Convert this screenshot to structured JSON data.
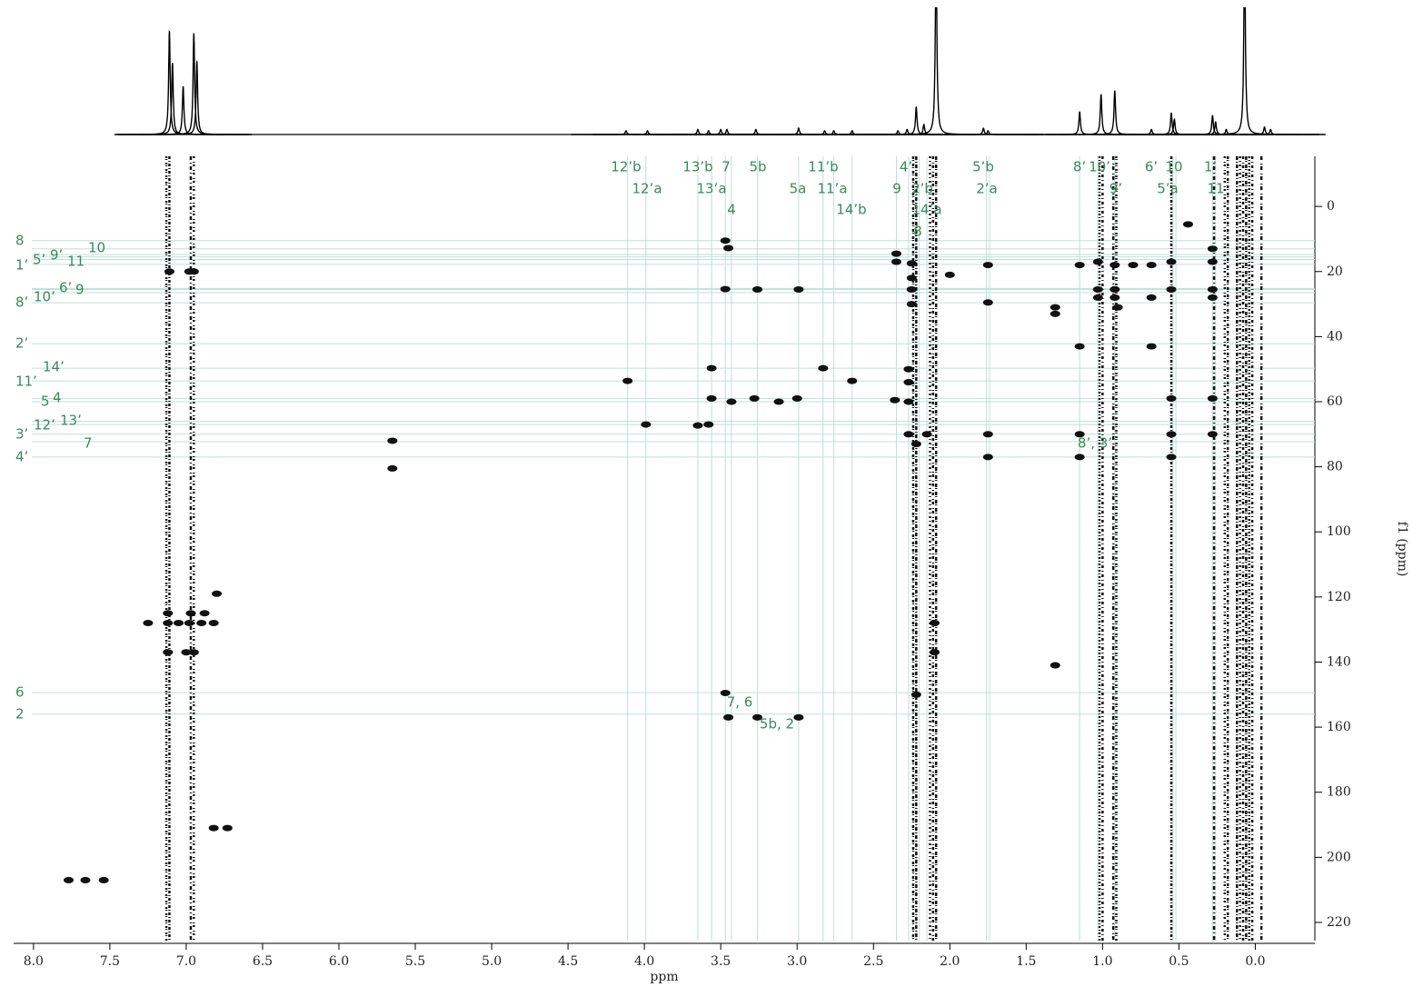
{
  "chart_data": {
    "type": "hmbc",
    "xlabel": "ppm",
    "ylabel": "f1 (ppm)",
    "xlim": [
      8.13,
      -0.39
    ],
    "ylim": [
      -15.4,
      225.6
    ],
    "xticks": [
      {
        "value": 8,
        "label": "8.0"
      },
      7.5,
      {
        "value": 7,
        "label": "7.0"
      },
      6.5,
      {
        "value": 6,
        "label": "6.0"
      },
      5.5,
      {
        "value": 5,
        "label": "5.0"
      },
      4.5,
      {
        "value": 4,
        "label": "4.0"
      },
      3.5,
      {
        "value": 3,
        "label": "3.0"
      },
      2.5,
      {
        "value": 2,
        "label": "2.0"
      },
      1.5,
      {
        "value": 1,
        "label": "1.0"
      },
      0.5,
      {
        "value": 0,
        "label": "0.0"
      }
    ],
    "yticks": [
      0,
      20,
      40,
      60,
      80,
      100,
      120,
      140,
      160,
      180,
      200,
      220
    ],
    "label_color": "#3b8a58",
    "guide_color": "#bfe0d8",
    "peak_color": "#111111",
    "projection": {
      "ylim": [
        0,
        100
      ],
      "x": [
        7.11,
        7.09,
        7.02,
        6.95,
        6.93,
        4.12,
        3.98,
        3.65,
        3.58,
        3.5,
        3.46,
        3.27,
        2.99,
        2.82,
        2.76,
        2.64,
        2.34,
        2.28,
        2.22,
        2.17,
        2.09,
        1.78,
        1.75,
        1.15,
        1.01,
        0.92,
        0.68,
        0.55,
        0.53,
        0.28,
        0.26,
        0.19,
        0.07,
        -0.06,
        -0.1
      ],
      "values": [
        82,
        57,
        38,
        80,
        58,
        3,
        3,
        4,
        3,
        4,
        4,
        4,
        5,
        3,
        3,
        3,
        3,
        4,
        22,
        8,
        150,
        5,
        3,
        18,
        32,
        35,
        4,
        17,
        12,
        15,
        10,
        4,
        150,
        6,
        4
      ]
    },
    "peaks": {
      "x": [
        7.11,
        6.95,
        6.98,
        3.47,
        3.45,
        3.47,
        3.26,
        2.99,
        3.56,
        2.83,
        2.64,
        4.11,
        3.56,
        3.43,
        3.28,
        3.12,
        3.0,
        3.99,
        3.65,
        3.58,
        5.65,
        5.65,
        2.35,
        2.35,
        2.25,
        2.25,
        2.25,
        2.25,
        2.27,
        2.27,
        2.36,
        2.27,
        2.27,
        2.22,
        2.15,
        2.22,
        2.0,
        1.75,
        1.75,
        1.75,
        1.75,
        1.31,
        1.31,
        1.31,
        1.15,
        1.15,
        1.15,
        1.15,
        1.03,
        1.03,
        1.03,
        0.92,
        0.92,
        0.92,
        0.9,
        0.8,
        0.68,
        0.68,
        0.68,
        0.55,
        0.55,
        0.55,
        0.55,
        0.55,
        0.44,
        0.28,
        0.28,
        0.28,
        0.28,
        0.28,
        0.28,
        3.47,
        3.45,
        3.26,
        2.99,
        7.25,
        7.12,
        7.12,
        7.05,
        6.97,
        6.98,
        6.9,
        6.88,
        6.82,
        7.12,
        7.0,
        6.95,
        6.8,
        6.82,
        6.73,
        7.77,
        7.66,
        7.54,
        2.1,
        2.1
      ],
      "y": [
        20,
        20,
        20,
        10.5,
        12.8,
        25.4,
        25.5,
        25.5,
        49.7,
        49.7,
        53.6,
        53.6,
        59,
        60,
        59,
        60,
        59,
        67,
        67.3,
        67,
        72,
        80.5,
        14.5,
        17,
        17.5,
        22,
        25.5,
        30,
        50,
        54,
        59.5,
        60,
        70,
        73,
        70,
        150,
        21,
        18,
        29.5,
        70,
        77,
        31,
        33,
        141,
        43,
        70,
        77,
        18,
        17,
        25.5,
        28,
        18,
        25.5,
        28,
        31,
        18,
        18,
        28,
        43,
        17,
        25.5,
        59,
        70,
        77,
        5.5,
        13,
        17,
        25.5,
        28,
        59,
        70,
        149.5,
        157,
        157,
        157,
        128,
        125,
        128,
        128,
        125,
        128,
        128,
        125,
        128,
        137,
        137,
        137,
        119,
        191,
        191,
        207,
        207,
        207,
        128,
        137
      ]
    },
    "t1_noise_x": [
      7.13,
      7.11,
      6.97,
      6.95,
      2.24,
      2.22,
      2.13,
      2.11,
      2.09,
      1.02,
      1.0,
      0.93,
      0.91,
      0.55,
      0.27,
      0.2,
      0.18,
      0.12,
      0.1,
      0.08,
      0.06,
      0.04,
      0.02,
      -0.04
    ],
    "h_assignments": {
      "labels": [
        "8",
        "10",
        "9’",
        "5’",
        "11",
        "1’",
        "6’",
        "9",
        "10’",
        "8’",
        "2’",
        "14’",
        "11’",
        "5",
        "4",
        "13’",
        "12’",
        "3’",
        "7",
        "4’",
        "6",
        "2"
      ],
      "values": [
        10.5,
        13,
        14.8,
        15.5,
        16.3,
        17.8,
        25.2,
        25.5,
        26.5,
        29.6,
        42.2,
        49.7,
        53.6,
        60,
        59,
        66,
        67,
        70,
        72.3,
        77,
        149.4,
        156
      ]
    },
    "v_assignments": {
      "labels": [
        "12’b",
        "12’a",
        "13’b",
        "13’a",
        "7",
        "4",
        "5b",
        "5a",
        "11’b",
        "11’a",
        "14’b",
        "9",
        "4’",
        "2’b",
        "14’a",
        "8",
        "5’b",
        "2’a",
        "8’",
        "10’",
        "9’",
        "6’",
        "10",
        "5’a",
        "1’",
        "11"
      ],
      "values": [
        4.11,
        3.99,
        3.65,
        3.56,
        3.47,
        3.43,
        3.26,
        2.99,
        2.83,
        2.76,
        2.64,
        2.35,
        2.27,
        2.22,
        2.15,
        2.2,
        1.76,
        1.74,
        1.15,
        1.03,
        0.92,
        0.54,
        0.52,
        0.54,
        0.28,
        0.26
      ]
    },
    "annotations": [
      "7, 6",
      "5b, 2",
      "8’, 3’"
    ]
  }
}
